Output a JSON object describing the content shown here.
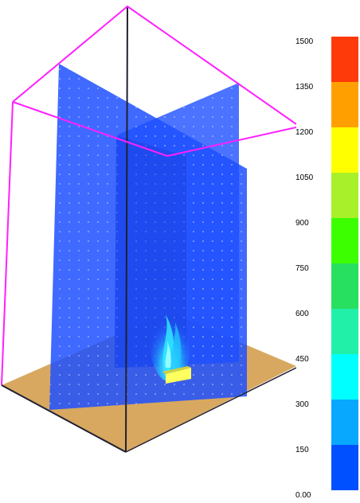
{
  "colorbar": {
    "labels": [
      "1500",
      "1350",
      "1200",
      "1050",
      "900",
      "750",
      "600",
      "450",
      "300",
      "150",
      "0.00"
    ],
    "colors": [
      "#ff3a0a",
      "#ffa000",
      "#ffff00",
      "#a8f02a",
      "#3cff00",
      "#28e060",
      "#20f0a8",
      "#00ffff",
      "#08a8ff",
      "#0050ff"
    ]
  },
  "scene": {
    "frame_color": "#ff20ff",
    "edge_color": "#202030",
    "floor_color": "#d8a860",
    "plane_color": "#1e50ff",
    "burner_color": "#ffff60"
  }
}
